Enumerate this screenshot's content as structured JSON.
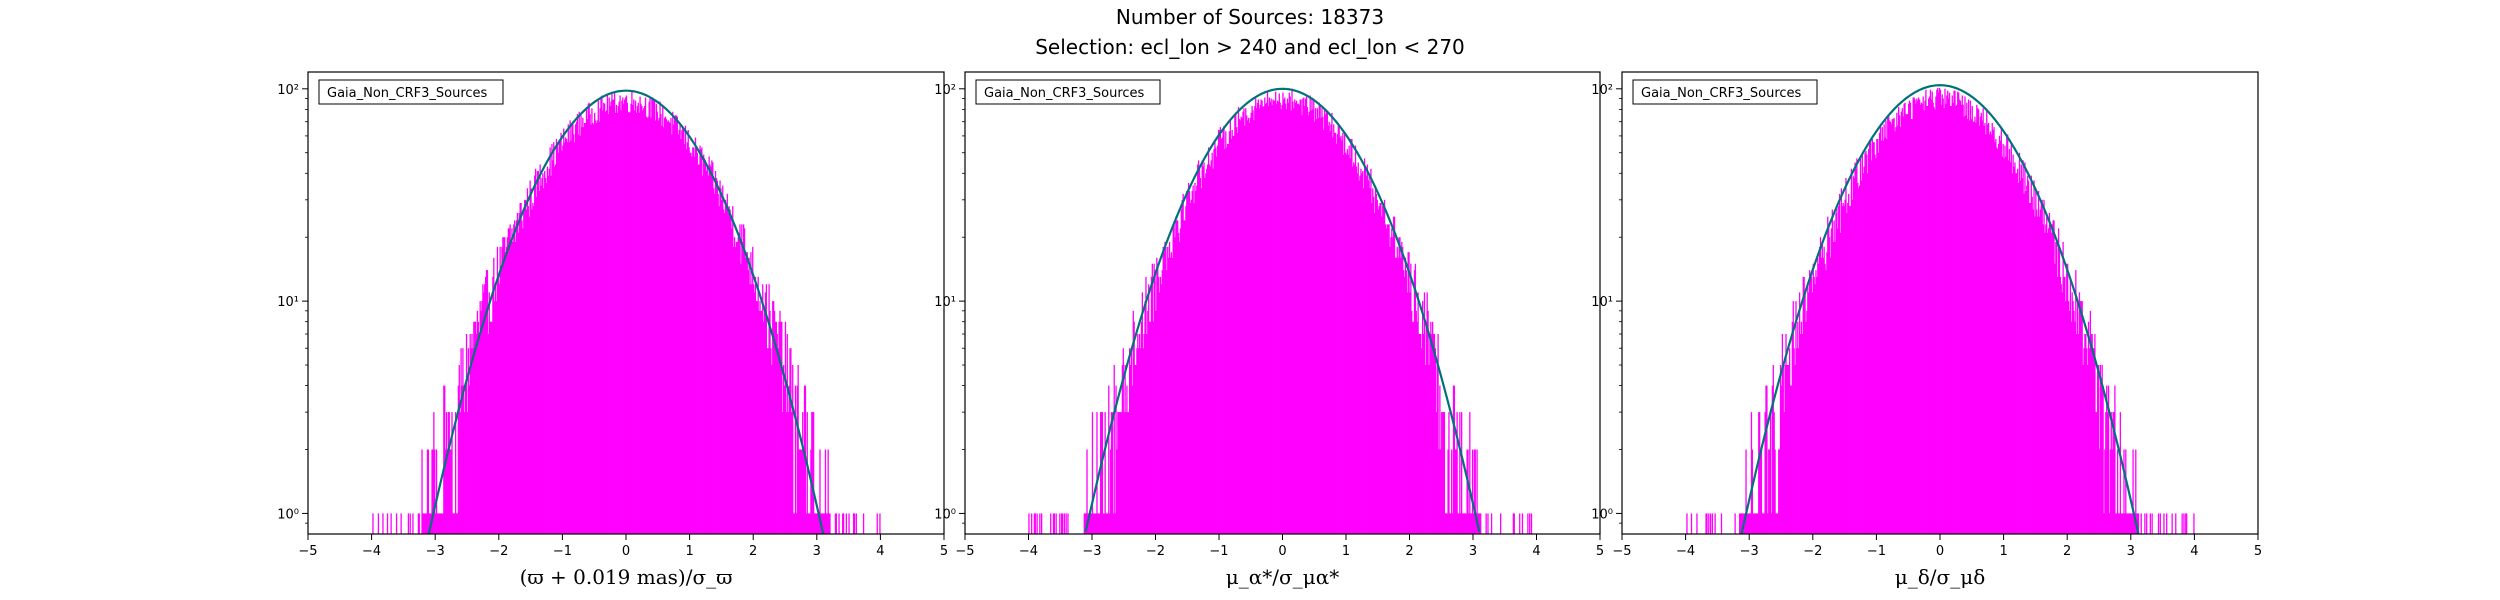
{
  "figure": {
    "title_line1": "Number of Sources: 18373",
    "title_line2": "Selection: ecl_lon > 240 and ecl_lon < 270"
  },
  "colors": {
    "histogram": "#ff00ff",
    "fit_curve": "#00727a"
  },
  "chart_data": [
    {
      "type": "histogram",
      "panel": "left",
      "legend": "Gaia_Non_CRF3_Sources",
      "legend_position": "top-left",
      "xlabel": "(ϖ + 0.019 mas)/σ_ϖ",
      "ylabel": "",
      "xlim": [
        -5,
        5
      ],
      "ylim": [
        0.8,
        120
      ],
      "yscale": "log",
      "xticks": [
        -5,
        -4,
        -3,
        -2,
        -1,
        0,
        1,
        2,
        3,
        4,
        5
      ],
      "xtick_labels": [
        "−5",
        "−4",
        "−3",
        "−2",
        "−1",
        "0",
        "1",
        "2",
        "3",
        "4",
        "5"
      ],
      "yticks": [
        1,
        10,
        100
      ],
      "ytick_labels": [
        "10⁰",
        "10¹",
        "10²"
      ],
      "fit_curve": {
        "model": "gaussian",
        "mean": 0.0,
        "sigma": 1.0,
        "peak": 98
      },
      "histogram_envelope": {
        "peak": 88,
        "sigma": 1.05,
        "outlier_x_range": [
          -4.3,
          4.4
        ]
      }
    },
    {
      "type": "histogram",
      "panel": "middle",
      "legend": "Gaia_Non_CRF3_Sources",
      "legend_position": "top-left",
      "xlabel": "μ_α*/σ_μα*",
      "ylabel": "",
      "xlim": [
        -5,
        5
      ],
      "ylim": [
        0.8,
        120
      ],
      "yscale": "log",
      "xticks": [
        -5,
        -4,
        -3,
        -2,
        -1,
        0,
        1,
        2,
        3,
        4,
        5
      ],
      "xtick_labels": [
        "−5",
        "−4",
        "−3",
        "−2",
        "−1",
        "0",
        "1",
        "2",
        "3",
        "4",
        "5"
      ],
      "yticks": [
        1,
        10,
        100
      ],
      "ytick_labels": [
        "10⁰",
        "10¹",
        "10²"
      ],
      "fit_curve": {
        "model": "gaussian",
        "mean": 0.0,
        "sigma": 1.0,
        "peak": 100
      },
      "histogram_envelope": {
        "peak": 90,
        "sigma": 1.02,
        "outlier_x_range": [
          -4.8,
          4.9
        ]
      }
    },
    {
      "type": "histogram",
      "panel": "right",
      "legend": "Gaia_Non_CRF3_Sources",
      "legend_position": "top-left",
      "xlabel": "μ_δ/σ_μδ",
      "ylabel": "",
      "xlim": [
        -5,
        5
      ],
      "ylim": [
        0.8,
        120
      ],
      "yscale": "log",
      "xticks": [
        -5,
        -4,
        -3,
        -2,
        -1,
        0,
        1,
        2,
        3,
        4,
        5
      ],
      "xtick_labels": [
        "−5",
        "−4",
        "−3",
        "−2",
        "−1",
        "0",
        "1",
        "2",
        "3",
        "4",
        "5"
      ],
      "yticks": [
        1,
        10,
        100
      ],
      "ytick_labels": [
        "10⁰",
        "10¹",
        "10²"
      ],
      "fit_curve": {
        "model": "gaussian",
        "mean": 0.0,
        "sigma": 1.0,
        "peak": 104
      },
      "histogram_envelope": {
        "peak": 90,
        "sigma": 1.02,
        "outlier_x_range": [
          -4.7,
          4.6
        ]
      }
    }
  ]
}
